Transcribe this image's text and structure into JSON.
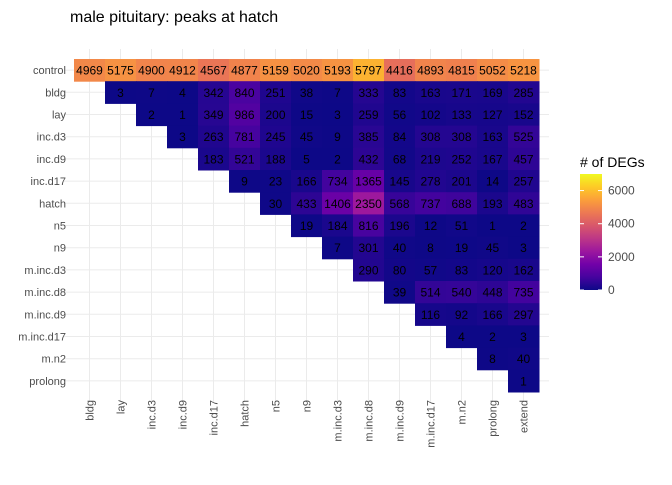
{
  "chart_data": {
    "type": "heatmap",
    "title": "male pituitary: peaks at hatch",
    "xlabel": "",
    "ylabel": "",
    "x_categories": [
      "bldg",
      "lay",
      "inc.d3",
      "inc.d9",
      "inc.d17",
      "hatch",
      "n5",
      "n9",
      "m.inc.d3",
      "m.inc.d8",
      "m.inc.d9",
      "m.inc.d17",
      "m.n2",
      "prolong",
      "extend"
    ],
    "y_categories": [
      "control",
      "bldg",
      "lay",
      "inc.d3",
      "inc.d9",
      "inc.d17",
      "hatch",
      "n5",
      "n9",
      "m.inc.d3",
      "m.inc.d8",
      "m.inc.d9",
      "m.inc.d17",
      "m.n2",
      "prolong"
    ],
    "values": [
      [
        4969,
        5175,
        4900,
        4912,
        4567,
        4877,
        5159,
        5020,
        5193,
        5797,
        4416,
        4893,
        4815,
        5052,
        5218
      ],
      [
        null,
        3,
        7,
        4,
        342,
        840,
        251,
        38,
        7,
        333,
        83,
        163,
        171,
        169,
        285
      ],
      [
        null,
        null,
        2,
        1,
        349,
        986,
        200,
        15,
        3,
        259,
        56,
        102,
        133,
        127,
        152
      ],
      [
        null,
        null,
        null,
        3,
        263,
        781,
        245,
        45,
        9,
        385,
        84,
        308,
        308,
        163,
        525
      ],
      [
        null,
        null,
        null,
        null,
        183,
        521,
        188,
        5,
        2,
        432,
        68,
        219,
        252,
        167,
        457
      ],
      [
        null,
        null,
        null,
        null,
        null,
        9,
        23,
        166,
        734,
        1365,
        145,
        278,
        201,
        14,
        257
      ],
      [
        null,
        null,
        null,
        null,
        null,
        null,
        30,
        433,
        1406,
        2350,
        568,
        737,
        688,
        193,
        483
      ],
      [
        null,
        null,
        null,
        null,
        null,
        null,
        null,
        19,
        184,
        816,
        196,
        12,
        51,
        1,
        2
      ],
      [
        null,
        null,
        null,
        null,
        null,
        null,
        null,
        null,
        7,
        301,
        40,
        8,
        19,
        45,
        3
      ],
      [
        null,
        null,
        null,
        null,
        null,
        null,
        null,
        null,
        null,
        290,
        80,
        57,
        83,
        120,
        162
      ],
      [
        null,
        null,
        null,
        null,
        null,
        null,
        null,
        null,
        null,
        null,
        39,
        514,
        540,
        448,
        735
      ],
      [
        null,
        null,
        null,
        null,
        null,
        null,
        null,
        null,
        null,
        null,
        null,
        116,
        92,
        166,
        297
      ],
      [
        null,
        null,
        null,
        null,
        null,
        null,
        null,
        null,
        null,
        null,
        null,
        null,
        4,
        2,
        3
      ],
      [
        null,
        null,
        null,
        null,
        null,
        null,
        null,
        null,
        null,
        null,
        null,
        null,
        null,
        8,
        40
      ],
      [
        null,
        null,
        null,
        null,
        null,
        null,
        null,
        null,
        null,
        null,
        null,
        null,
        null,
        null,
        1
      ]
    ],
    "legend": {
      "title": "# of DEGs",
      "ticks": [
        0,
        2000,
        4000,
        6000
      ],
      "range": [
        0,
        7000
      ],
      "placement": "right"
    },
    "colormap": [
      "#0d0887",
      "#46039f",
      "#7201a8",
      "#9c179e",
      "#bd3786",
      "#d8576b",
      "#ed7953",
      "#fb9f3a",
      "#fdca26",
      "#f0f921"
    ],
    "grid": true
  }
}
